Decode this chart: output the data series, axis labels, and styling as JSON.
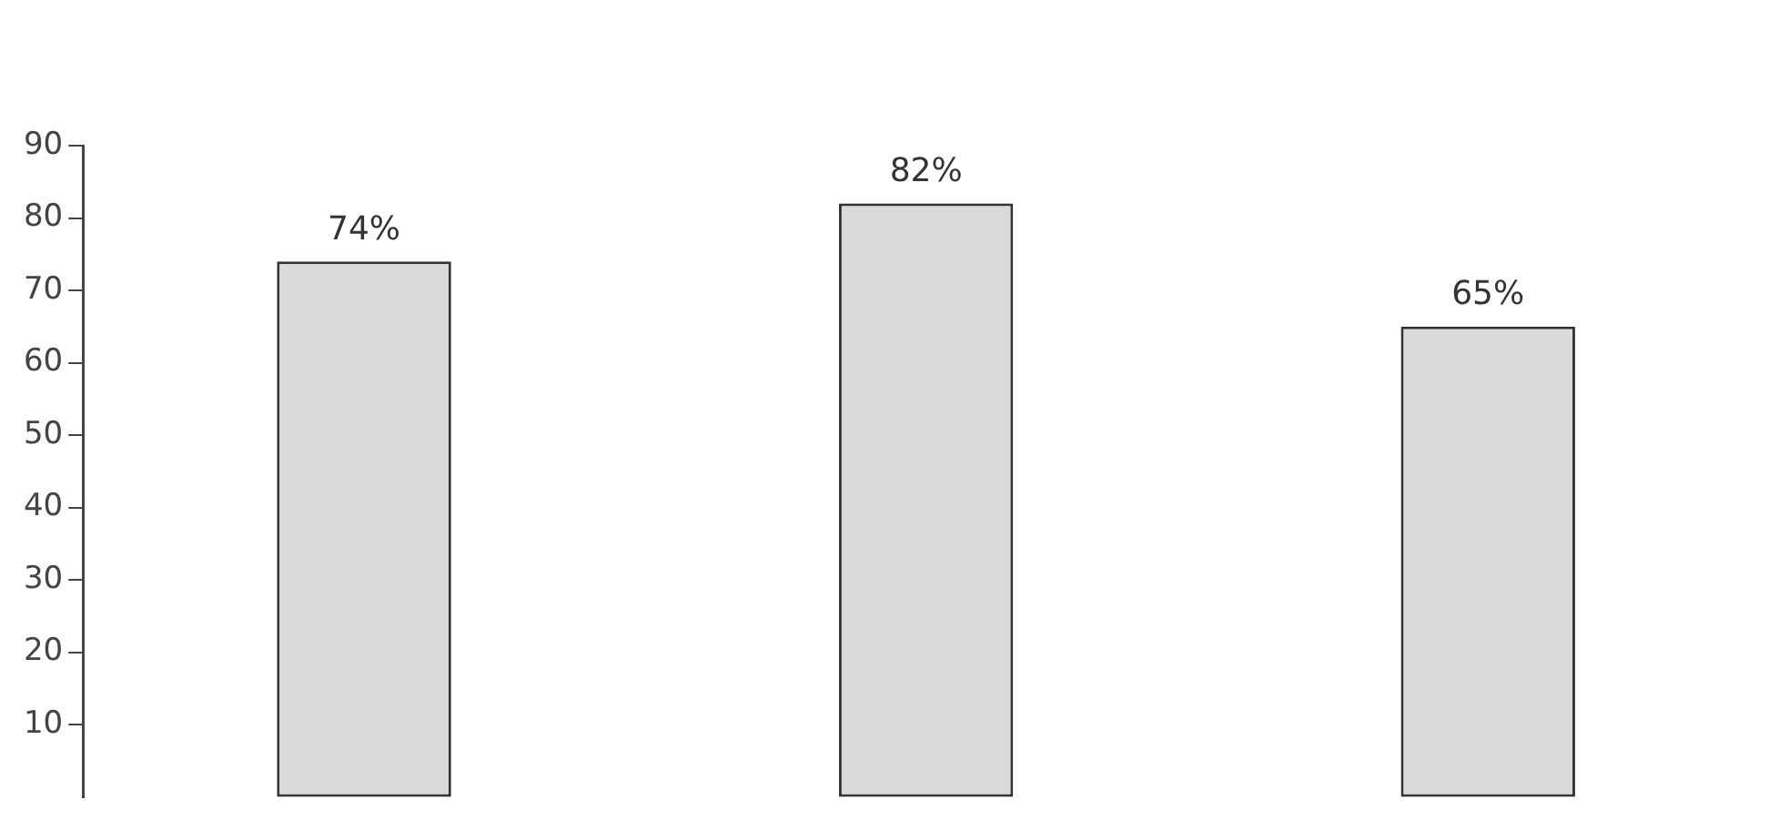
{
  "chart_data": {
    "type": "bar",
    "categories": [
      null,
      null,
      null
    ],
    "values": [
      74,
      82,
      65
    ],
    "value_labels": [
      "74%",
      "82%",
      "65%"
    ],
    "color": "#d8d9db",
    "ylim": [
      0,
      90
    ],
    "yticks": [
      10,
      20,
      30,
      40,
      50,
      60,
      70,
      80,
      90
    ],
    "grid": false,
    "legend": false
  }
}
